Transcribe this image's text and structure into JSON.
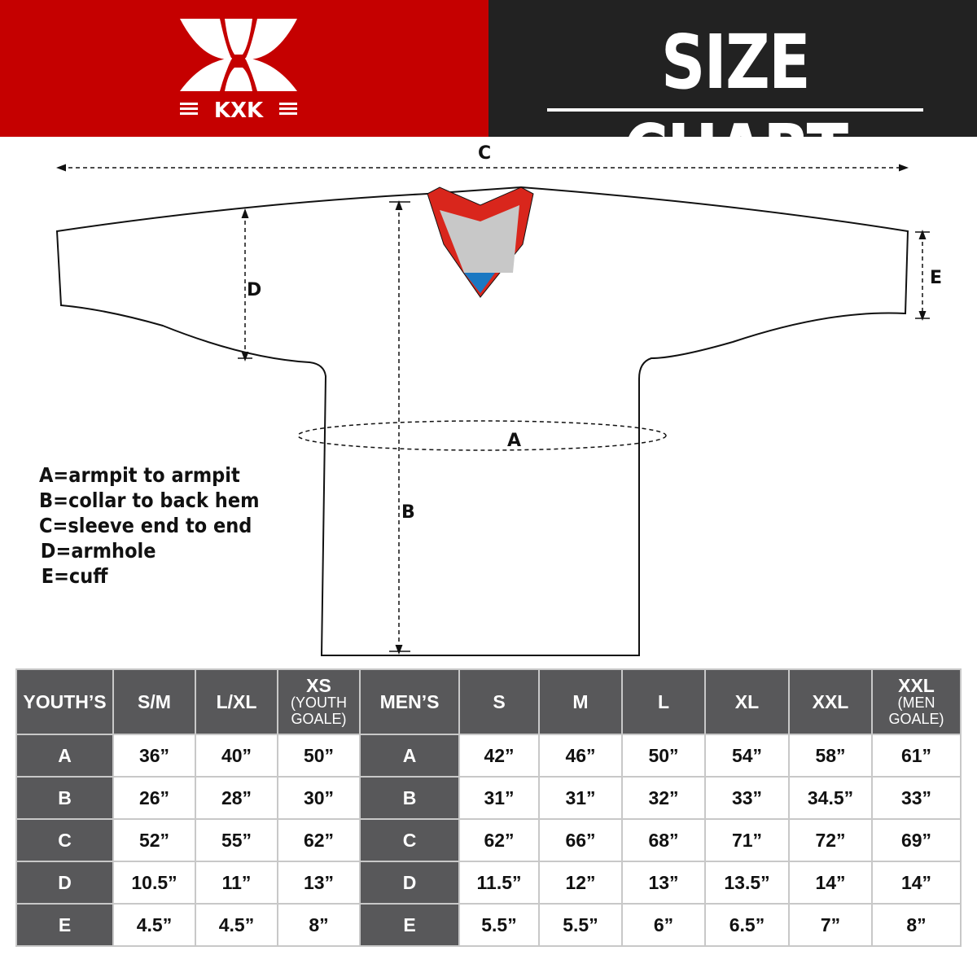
{
  "brand": {
    "logo_text": "KXK",
    "color": "#c50000"
  },
  "header": {
    "title": "SIZE CHART",
    "right_bg": "#222222"
  },
  "diagram": {
    "labels": {
      "A": "A",
      "B": "B",
      "C": "C",
      "D": "D",
      "E": "E"
    },
    "collar_colors": {
      "trim": "#d9261c",
      "inner": "#c8c8c8",
      "accent": "#1a78c2"
    }
  },
  "legend": [
    "A=armpit to armpit",
    "B=collar to back hem",
    "C=sleeve end to end",
    "D=armhole",
    "E=cuff"
  ],
  "table": {
    "youth_header": "YOUTH’S",
    "youth_sizes": [
      {
        "main": "S/M",
        "sub": ""
      },
      {
        "main": "L/XL",
        "sub": ""
      },
      {
        "main": "XS",
        "sub": "(YOUTH GOALE)"
      }
    ],
    "men_header": "MEN’S",
    "men_sizes": [
      {
        "main": "S",
        "sub": ""
      },
      {
        "main": "M",
        "sub": ""
      },
      {
        "main": "L",
        "sub": ""
      },
      {
        "main": "XL",
        "sub": ""
      },
      {
        "main": "XXL",
        "sub": ""
      },
      {
        "main": "XXL",
        "sub": "(MEN GOALE)"
      }
    ],
    "rows": [
      {
        "label": "A",
        "youth": [
          "36”",
          "40”",
          "50”"
        ],
        "men": [
          "42”",
          "46”",
          "50”",
          "54”",
          "58”",
          "61”"
        ]
      },
      {
        "label": "B",
        "youth": [
          "26”",
          "28”",
          "30”"
        ],
        "men": [
          "31”",
          "31”",
          "32”",
          "33”",
          "34.5”",
          "33”"
        ]
      },
      {
        "label": "C",
        "youth": [
          "52”",
          "55”",
          "62”"
        ],
        "men": [
          "62”",
          "66”",
          "68”",
          "71”",
          "72”",
          "69”"
        ]
      },
      {
        "label": "D",
        "youth": [
          "10.5”",
          "11”",
          "13”"
        ],
        "men": [
          "11.5”",
          "12”",
          "13”",
          "13.5”",
          "14”",
          "14”"
        ]
      },
      {
        "label": "E",
        "youth": [
          "4.5”",
          "4.5”",
          "8”"
        ],
        "men": [
          "5.5”",
          "5.5”",
          "6”",
          "6.5”",
          "7”",
          "8”"
        ]
      }
    ]
  }
}
